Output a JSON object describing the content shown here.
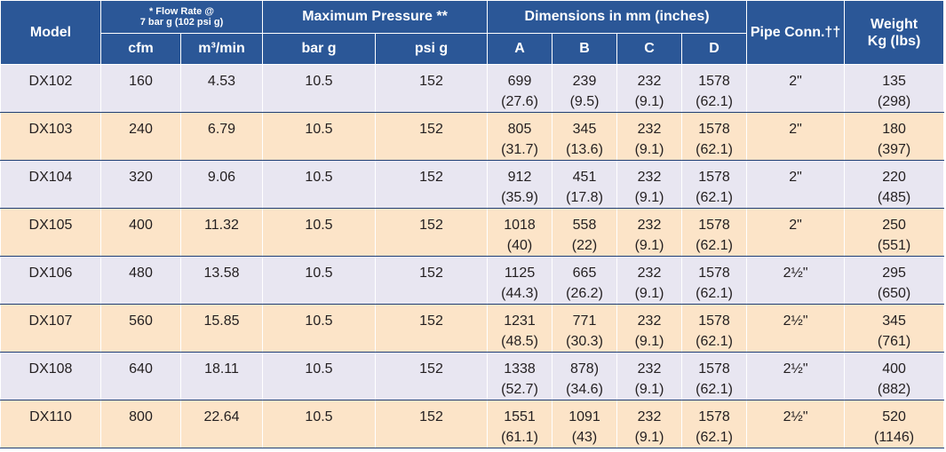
{
  "colors": {
    "header_bg": "#2b5797",
    "header_text": "#ffffff",
    "row_odd": "#e8e6f1",
    "row_even": "#fce4c8",
    "row_divider": "#1f3f74"
  },
  "header": {
    "model": "Model",
    "flow_rate_line1": "* Flow Rate @",
    "flow_rate_line2": "7 bar g (102 psi g)",
    "max_pressure": "Maximum Pressure **",
    "dimensions": "Dimensions in mm (inches)",
    "pipe_conn": "Pipe Conn.††",
    "weight_line1": "Weight",
    "weight_line2": "Kg (lbs)",
    "cfm": "cfm",
    "m3min": "m³/min",
    "bar_g": "bar g",
    "psi_g": "psi g",
    "dim_a": "A",
    "dim_b": "B",
    "dim_c": "C",
    "dim_d": "D"
  },
  "rows": [
    {
      "model": "DX102",
      "cfm": "160",
      "m3min": "4.53",
      "bar_g": "10.5",
      "psi_g": "152",
      "a_mm": "699",
      "a_in": "(27.6)",
      "b_mm": "239",
      "b_in": "(9.5)",
      "c_mm": "232",
      "c_in": "(9.1)",
      "d_mm": "1578",
      "d_in": "(62.1)",
      "pipe": "2\"",
      "wt_kg": "135",
      "wt_lbs": "(298)"
    },
    {
      "model": "DX103",
      "cfm": "240",
      "m3min": "6.79",
      "bar_g": "10.5",
      "psi_g": "152",
      "a_mm": "805",
      "a_in": "(31.7)",
      "b_mm": "345",
      "b_in": "(13.6)",
      "c_mm": "232",
      "c_in": "(9.1)",
      "d_mm": "1578",
      "d_in": "(62.1)",
      "pipe": "2\"",
      "wt_kg": "180",
      "wt_lbs": "(397)"
    },
    {
      "model": "DX104",
      "cfm": "320",
      "m3min": "9.06",
      "bar_g": "10.5",
      "psi_g": "152",
      "a_mm": "912",
      "a_in": "(35.9)",
      "b_mm": "451",
      "b_in": "(17.8)",
      "c_mm": "232",
      "c_in": "(9.1)",
      "d_mm": "1578",
      "d_in": "(62.1)",
      "pipe": "2\"",
      "wt_kg": "220",
      "wt_lbs": "(485)"
    },
    {
      "model": "DX105",
      "cfm": "400",
      "m3min": "11.32",
      "bar_g": "10.5",
      "psi_g": "152",
      "a_mm": "1018",
      "a_in": "(40)",
      "b_mm": "558",
      "b_in": "(22)",
      "c_mm": "232",
      "c_in": "(9.1)",
      "d_mm": "1578",
      "d_in": "(62.1)",
      "pipe": "2\"",
      "wt_kg": "250",
      "wt_lbs": "(551)"
    },
    {
      "model": "DX106",
      "cfm": "480",
      "m3min": "13.58",
      "bar_g": "10.5",
      "psi_g": "152",
      "a_mm": "1125",
      "a_in": "(44.3)",
      "b_mm": "665",
      "b_in": "(26.2)",
      "c_mm": "232",
      "c_in": "(9.1)",
      "d_mm": "1578",
      "d_in": "(62.1)",
      "pipe": "2½\"",
      "wt_kg": "295",
      "wt_lbs": "(650)"
    },
    {
      "model": "DX107",
      "cfm": "560",
      "m3min": "15.85",
      "bar_g": "10.5",
      "psi_g": "152",
      "a_mm": "1231",
      "a_in": "(48.5)",
      "b_mm": "771",
      "b_in": "(30.3)",
      "c_mm": "232",
      "c_in": "(9.1)",
      "d_mm": "1578",
      "d_in": "(62.1)",
      "pipe": "2½\"",
      "wt_kg": "345",
      "wt_lbs": "(761)"
    },
    {
      "model": "DX108",
      "cfm": "640",
      "m3min": "18.11",
      "bar_g": "10.5",
      "psi_g": "152",
      "a_mm": "1338",
      "a_in": "(52.7)",
      "b_mm": "878)",
      "b_in": "(34.6)",
      "c_mm": "232",
      "c_in": "(9.1)",
      "d_mm": "1578",
      "d_in": "(62.1)",
      "pipe": "2½\"",
      "wt_kg": "400",
      "wt_lbs": "(882)"
    },
    {
      "model": "DX110",
      "cfm": "800",
      "m3min": "22.64",
      "bar_g": "10.5",
      "psi_g": "152",
      "a_mm": "1551",
      "a_in": "(61.1)",
      "b_mm": "1091",
      "b_in": "(43)",
      "c_mm": "232",
      "c_in": "(9.1)",
      "d_mm": "1578",
      "d_in": "(62.1)",
      "pipe": "2½\"",
      "wt_kg": "520",
      "wt_lbs": "(1146)"
    }
  ]
}
